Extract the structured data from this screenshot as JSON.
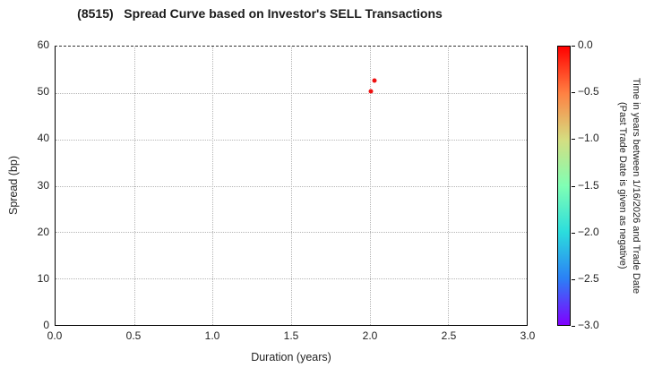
{
  "title": "(8515)   Spread Curve based on Investor's SELL Transactions",
  "chart_data": {
    "type": "scatter",
    "title": "(8515)   Spread Curve based on Investor's SELL Transactions",
    "xlabel": "Duration (years)",
    "ylabel": "Spread (bp)",
    "xlim": [
      0.0,
      3.0
    ],
    "ylim": [
      0,
      60
    ],
    "x_ticks": [
      0.0,
      0.5,
      1.0,
      1.5,
      2.0,
      2.5,
      3.0
    ],
    "x_tick_labels": [
      "0.0",
      "0.5",
      "1.0",
      "1.5",
      "2.0",
      "2.5",
      "3.0"
    ],
    "y_ticks": [
      0,
      10,
      20,
      30,
      40,
      50,
      60
    ],
    "y_tick_labels": [
      "0",
      "10",
      "20",
      "30",
      "40",
      "50",
      "60"
    ],
    "grid": true,
    "grid_style": "dotted",
    "legend": "none",
    "points": [
      {
        "duration": 2.03,
        "spread": 52.6,
        "time_years": 0.0,
        "color": "#ee1111"
      },
      {
        "duration": 2.01,
        "spread": 50.4,
        "time_years": 0.0,
        "color": "#ee1111"
      }
    ],
    "colorbar": {
      "label_line1": "Time in years between 1/16/2026 and Trade Date",
      "label_line2": "(Past Trade Date is given as negative)",
      "range_top_to_bottom": [
        0.0,
        -3.0
      ],
      "tick_labels": [
        "0.0",
        "−0.5",
        "−1.0",
        "−1.5",
        "−2.0",
        "−2.5",
        "−3.0"
      ],
      "colormap": "rainbow",
      "gradient_stops": [
        "#ff0000",
        "#ff8042",
        "#d5dd80",
        "#80ffb4",
        "#2bdddd",
        "#2b80f6",
        "#8000ff"
      ]
    }
  }
}
